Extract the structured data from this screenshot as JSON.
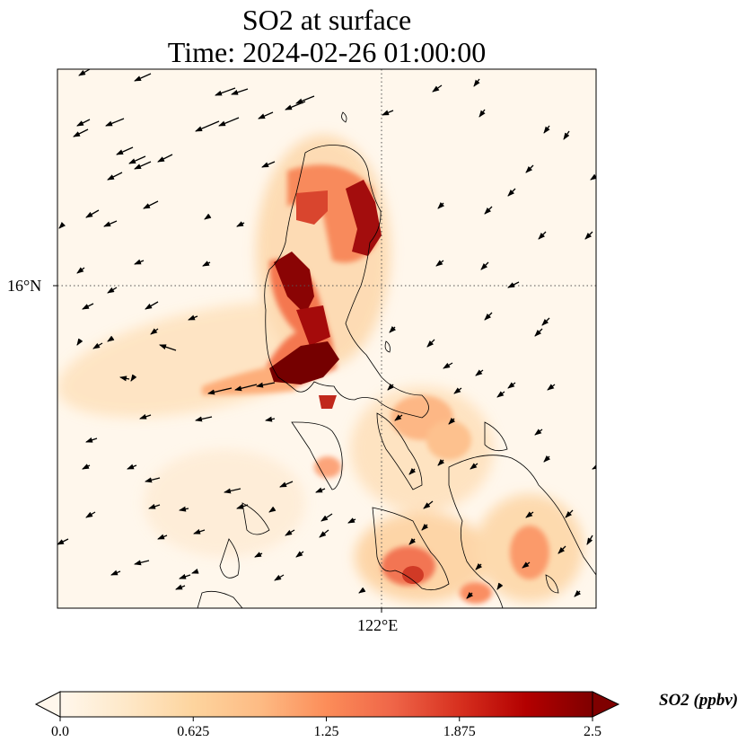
{
  "title": {
    "line1": "SO2 at surface",
    "line2": "Time: 2024-02-26 01:00:00"
  },
  "map": {
    "gridline_lat_label": "16°N",
    "gridline_lon_label": "122°E",
    "colormap": "OrRd",
    "gridlines": "dotted",
    "wind_vectors": "black arrows"
  },
  "colorbar": {
    "label": "SO2 (ppbv)",
    "min": 0.0,
    "max": 2.5,
    "ticks": [
      "0.0",
      "0.625",
      "1.25",
      "1.875",
      "2.5"
    ],
    "extend": "both",
    "colors": [
      "#fff7ec",
      "#fee8c8",
      "#fdd49e",
      "#fdbb84",
      "#fc8d59",
      "#ef6548",
      "#d7301f",
      "#b30000",
      "#7f0000"
    ]
  }
}
